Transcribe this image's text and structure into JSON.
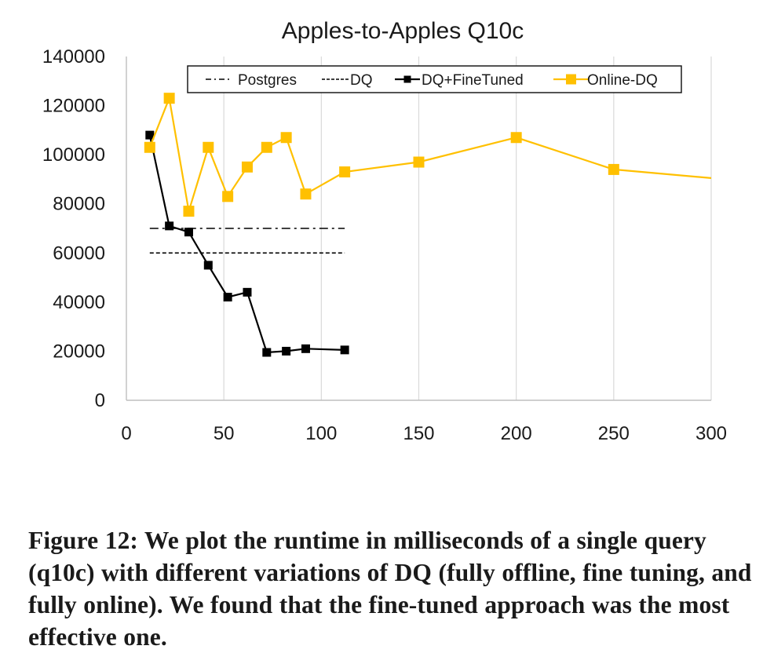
{
  "caption": "Figure 12: We plot the runtime in milliseconds of a single query (q10c) with different variations of DQ (fully offline, fine tuning, and fully online). We found that the fine-tuned approach was the most effective one.",
  "chart_data": {
    "type": "line",
    "title": "Apples-to-Apples Q10c",
    "xlabel": "",
    "ylabel": "",
    "xlim": [
      0,
      300
    ],
    "ylim": [
      0,
      140000
    ],
    "x_ticks": [
      "0",
      "50",
      "100",
      "150",
      "200",
      "250",
      "300"
    ],
    "y_ticks": [
      "0",
      "20000",
      "40000",
      "60000",
      "80000",
      "100000",
      "120000",
      "140000"
    ],
    "grid": "vertical",
    "legend_position": "top",
    "series": [
      {
        "name": "Postgres",
        "style": "dash-dot",
        "color": "#000000",
        "x": [
          12,
          112
        ],
        "y": [
          70000,
          70000
        ]
      },
      {
        "name": "DQ",
        "style": "dashed",
        "color": "#000000",
        "x": [
          12,
          112
        ],
        "y": [
          60000,
          60000
        ]
      },
      {
        "name": "DQ+FineTuned",
        "style": "solid-square-markers",
        "color": "#000000",
        "x": [
          12,
          22,
          32,
          42,
          52,
          62,
          72,
          82,
          92,
          112
        ],
        "y": [
          108000,
          71000,
          68500,
          55000,
          42000,
          44000,
          19500,
          20000,
          21000,
          20500
        ]
      },
      {
        "name": "Online-DQ",
        "style": "solid-square-markers",
        "color": "#FFC000",
        "x": [
          12,
          22,
          32,
          42,
          52,
          62,
          72,
          82,
          92,
          112,
          150,
          200,
          250,
          300
        ],
        "y": [
          103000,
          123000,
          77000,
          103000,
          83000,
          95000,
          103000,
          107000,
          84000,
          93000,
          97000,
          107000,
          94000,
          90500
        ]
      }
    ]
  }
}
